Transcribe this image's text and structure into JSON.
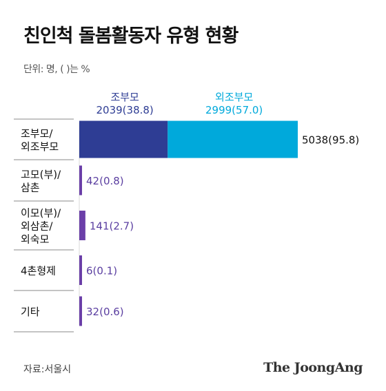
{
  "title": "친인척 돌봄활동자 유형 현황",
  "unit_note": "단위: 명, ( )는 %",
  "source": "자료:서울시",
  "brand": "The JoongAng",
  "colors": {
    "grandparents": "#2e3d94",
    "maternal_grandparents": "#00a9db",
    "others": "#6b3fa8",
    "others_text": "#5a3ea0",
    "divider": "#8a8a8a"
  },
  "chart_data": {
    "type": "bar",
    "orientation": "horizontal",
    "stacked": true,
    "categories": [
      [
        "조부모/",
        "외조부모"
      ],
      [
        "고모(부)/",
        "삼촌"
      ],
      [
        "이모(부)/",
        "외삼촌/",
        "외숙모"
      ],
      [
        "4촌형제"
      ],
      [
        "기타"
      ]
    ],
    "series": [
      {
        "name": "조부모",
        "header_label": "2039(38.8)",
        "values": [
          2039,
          null,
          null,
          null,
          null
        ],
        "color": "#2e3d94"
      },
      {
        "name": "외조부모",
        "header_label": "2999(57.0)",
        "values": [
          2999,
          null,
          null,
          null,
          null
        ],
        "color": "#00a9db"
      },
      {
        "name": "",
        "values": [
          null,
          42,
          141,
          6,
          32
        ],
        "color": "#6b3fa8"
      }
    ],
    "totals": [
      5038,
      42,
      141,
      6,
      32
    ],
    "data_labels": [
      "5038(95.8)",
      "42(0.8)",
      "141(2.7)",
      "6(0.1)",
      "32(0.6)"
    ],
    "percents": [
      95.8,
      0.8,
      2.7,
      0.1,
      0.6
    ],
    "xlim": [
      0,
      5038
    ],
    "grid": false
  }
}
